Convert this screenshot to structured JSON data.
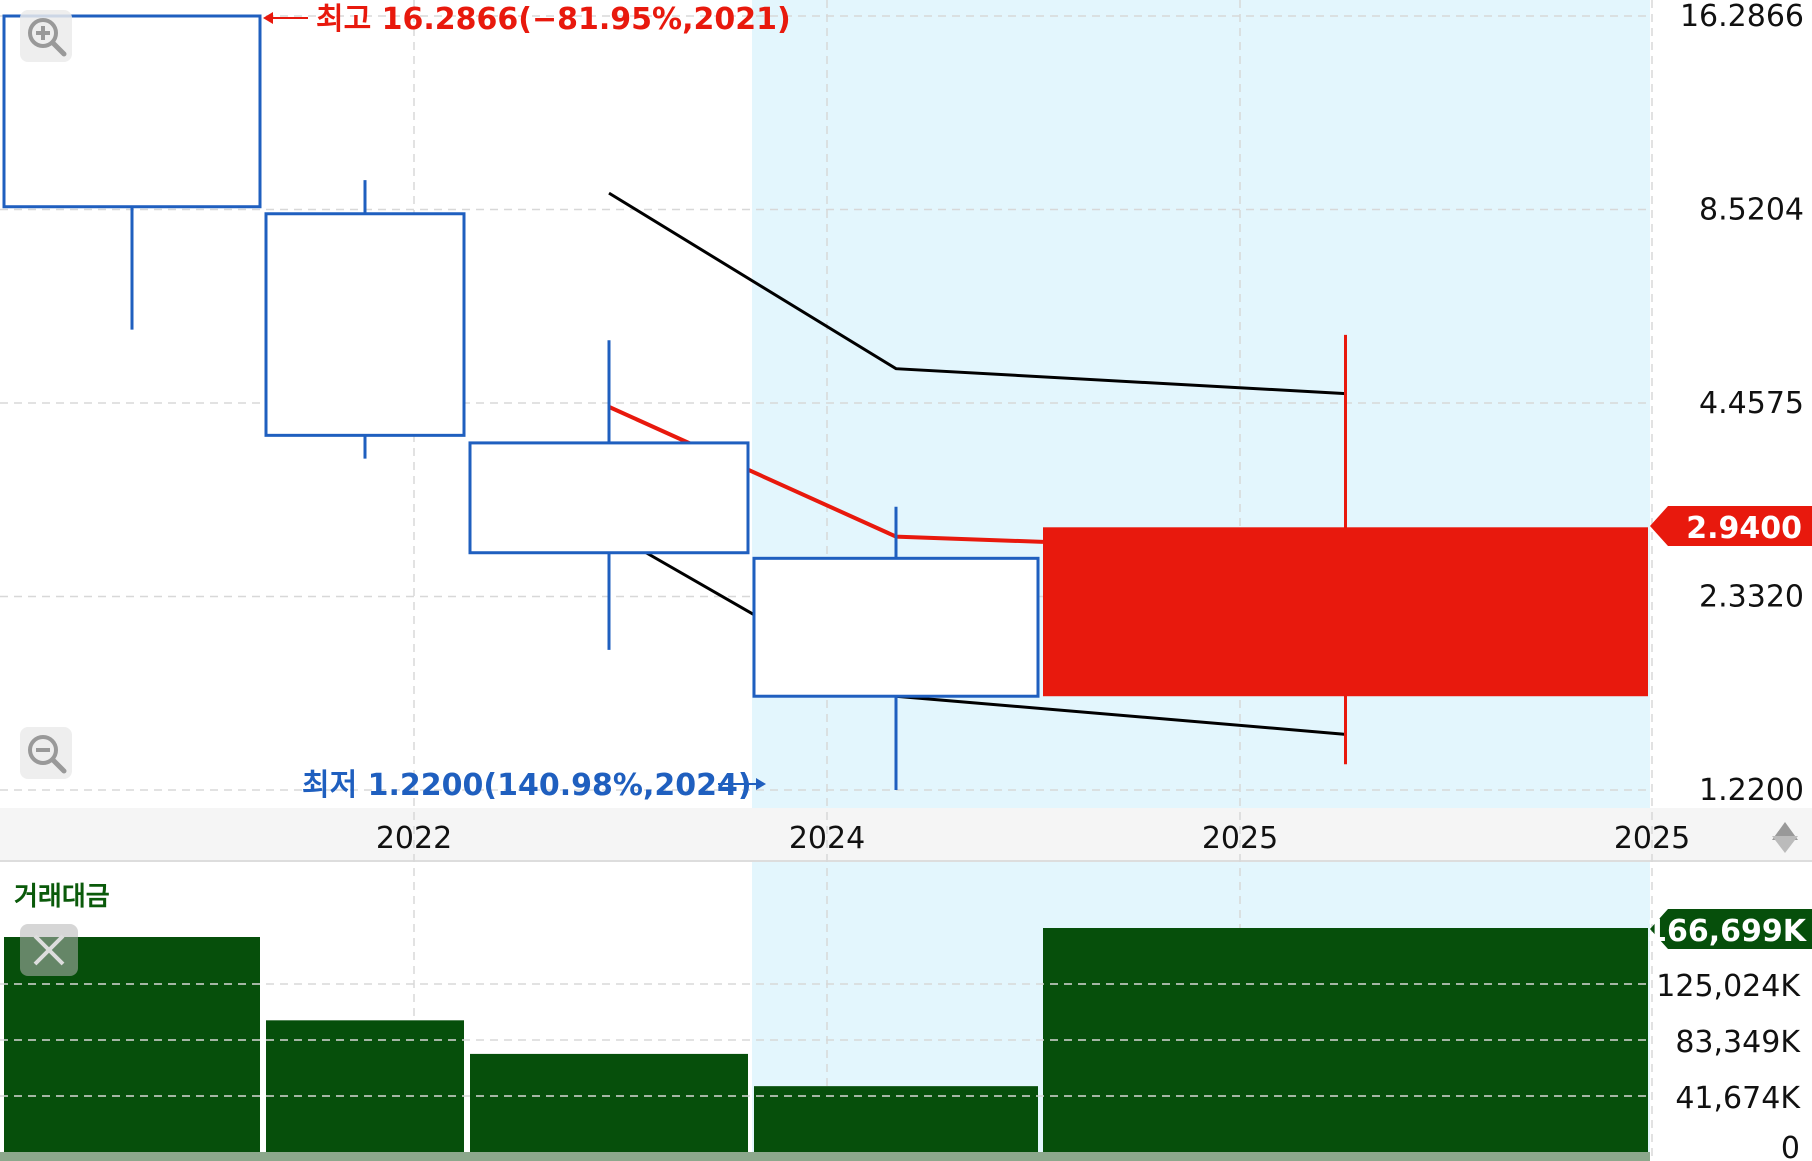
{
  "chart_data": {
    "type": "candlestick",
    "x_labels": [
      "2022",
      "2024",
      "2025",
      "2025"
    ],
    "y_ticks": [
      "16.2866",
      "8.5204",
      "4.4575",
      "2.3320",
      "1.2200"
    ],
    "y_scale": "log",
    "ylim": [
      1.22,
      16.2866
    ],
    "candles": [
      {
        "open": 16.2866,
        "high": 16.2866,
        "low": 5.7,
        "close": 8.6
      },
      {
        "open": 8.4,
        "high": 9.4,
        "low": 3.7,
        "close": 4.0
      },
      {
        "open": 3.9,
        "high": 5.5,
        "low": 1.95,
        "close": 2.7
      },
      {
        "open": 2.65,
        "high": 3.15,
        "low": 1.22,
        "close": 1.67
      },
      {
        "open": 1.67,
        "high": 5.6,
        "low": 1.33,
        "close": 2.94
      }
    ],
    "ma_red": [
      4.4,
      2.85,
      2.8
    ],
    "band_upper": [
      9.0,
      5.0,
      4.6
    ],
    "band_lower": [
      2.9,
      1.67,
      1.47
    ],
    "last_price_tag": "2.9400",
    "high_note": "최고 16.2866(−81.95%,2021)",
    "low_note": "최저 1.2200(140.98%,2024)",
    "volume": {
      "title": "거래대금",
      "y_ticks": [
        "166,699K",
        "125,024K",
        "83,349K",
        "41,674K",
        "0"
      ],
      "ymax": 166699,
      "values": [
        160000,
        98000,
        73000,
        49000,
        166699
      ],
      "last_tag": "166,699K"
    },
    "colors": {
      "up": "#e8190d",
      "down": "#1f5fbf",
      "volume": "#064f0b",
      "band": "#000000",
      "ma": "#e8190d",
      "highlight": "#e3f6fd"
    }
  },
  "icons": {
    "zoom_in": "zoom-in-icon",
    "zoom_out": "zoom-out-icon",
    "close": "close-icon",
    "scroll": "scroll-arrows-icon"
  }
}
